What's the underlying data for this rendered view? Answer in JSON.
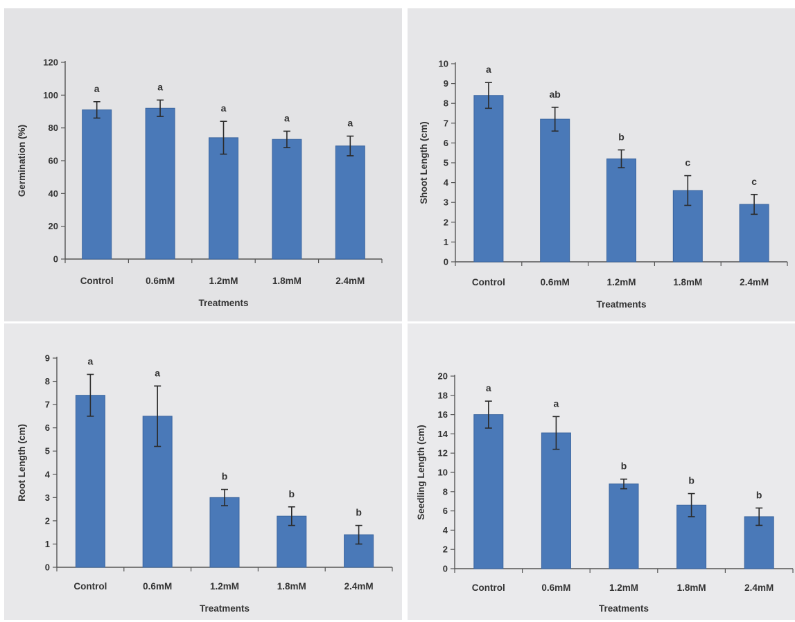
{
  "chart_data": [
    {
      "type": "bar",
      "categories": [
        "Control",
        "0.6mM",
        "1.2mM",
        "1.8mM",
        "2.4mM"
      ],
      "values": [
        91,
        92,
        74,
        73,
        69
      ],
      "errors": [
        5,
        5,
        10,
        5,
        6
      ],
      "significance": [
        "a",
        "a",
        "a",
        "a",
        "a"
      ],
      "title": "",
      "xlabel": "Treatments",
      "ylabel": "Germination (%)",
      "ylim": [
        0,
        120
      ],
      "yticks": [
        0,
        20,
        40,
        60,
        80,
        100,
        120
      ],
      "bar_color": "#4a79b8",
      "grid": false
    },
    {
      "type": "bar",
      "categories": [
        "Control",
        "0.6mM",
        "1.2mM",
        "1.8mM",
        "2.4mM"
      ],
      "values": [
        8.4,
        7.2,
        5.2,
        3.6,
        2.9
      ],
      "errors": [
        0.65,
        0.6,
        0.45,
        0.75,
        0.5
      ],
      "significance": [
        "a",
        "ab",
        "b",
        "c",
        "c"
      ],
      "title": "",
      "xlabel": "Treatments",
      "ylabel": "Shoot Length (cm)",
      "ylim": [
        0,
        10
      ],
      "yticks": [
        0,
        1,
        2,
        3,
        4,
        5,
        6,
        7,
        8,
        9,
        10
      ],
      "bar_color": "#4a79b8",
      "grid": false
    },
    {
      "type": "bar",
      "categories": [
        "Control",
        "0.6mM",
        "1.2mM",
        "1.8mM",
        "2.4mM"
      ],
      "values": [
        7.4,
        6.5,
        3.0,
        2.2,
        1.4
      ],
      "errors": [
        0.9,
        1.3,
        0.35,
        0.4,
        0.4
      ],
      "significance": [
        "a",
        "a",
        "b",
        "b",
        "b"
      ],
      "title": "",
      "xlabel": "Treatments",
      "ylabel": "Root Length (cm)",
      "ylim": [
        0,
        9
      ],
      "yticks": [
        0,
        1,
        2,
        3,
        4,
        5,
        6,
        7,
        8,
        9
      ],
      "bar_color": "#4a79b8",
      "grid": false
    },
    {
      "type": "bar",
      "categories": [
        "Control",
        "0.6mM",
        "1.2mM",
        "1.8mM",
        "2.4mM"
      ],
      "values": [
        16,
        14.1,
        8.8,
        6.6,
        5.4
      ],
      "errors": [
        1.4,
        1.7,
        0.5,
        1.2,
        0.9
      ],
      "significance": [
        "a",
        "a",
        "b",
        "b",
        "b"
      ],
      "title": "",
      "xlabel": "Treatments",
      "ylabel": "Seedling Length (cm)",
      "ylim": [
        0,
        20
      ],
      "yticks": [
        0,
        2,
        4,
        6,
        8,
        10,
        12,
        14,
        16,
        18,
        20
      ],
      "bar_color": "#4a79b8",
      "grid": false
    }
  ]
}
